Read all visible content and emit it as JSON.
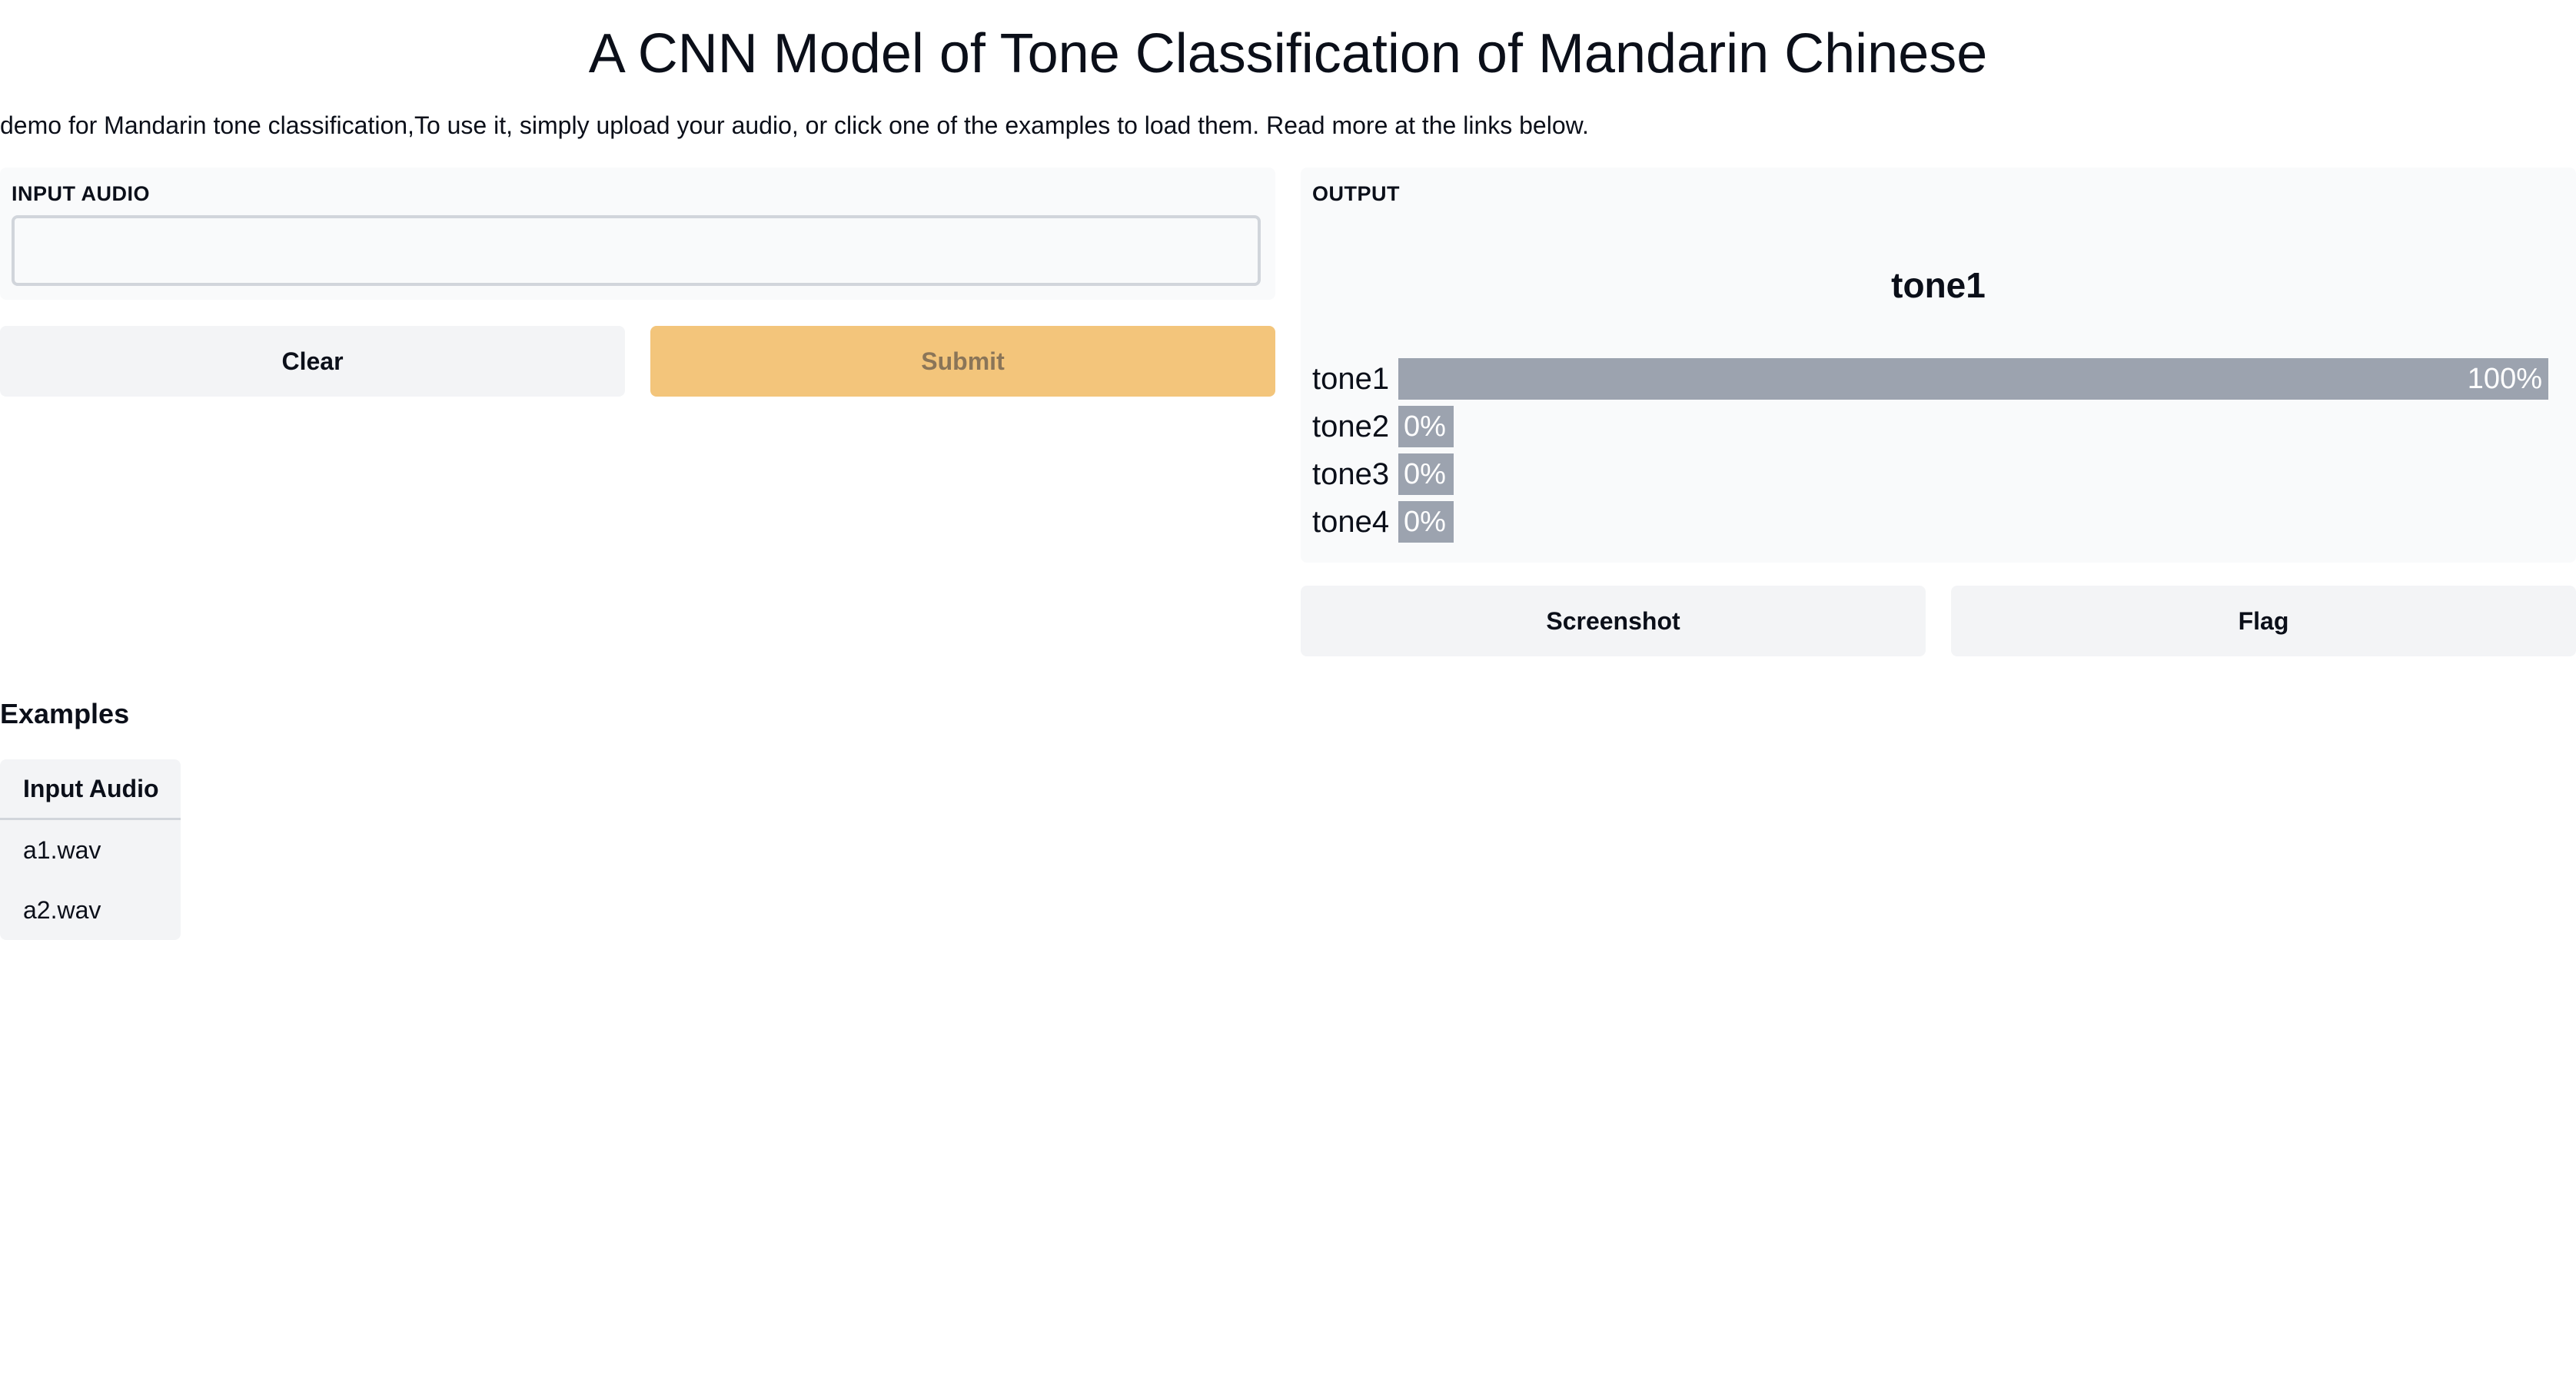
{
  "header": {
    "title": "A CNN Model of Tone Classification of Mandarin Chinese",
    "description": "demo for Mandarin tone classification,To use it, simply upload your audio, or click one of the examples to load them. Read more at the links below."
  },
  "input": {
    "label": "INPUT AUDIO",
    "clear_label": "Clear",
    "submit_label": "Submit"
  },
  "output": {
    "label": "OUTPUT",
    "top_label": "tone1",
    "confidences": [
      {
        "name": "tone1",
        "value": 1.0,
        "text": "100%"
      },
      {
        "name": "tone2",
        "value": 0.0,
        "text": "0%"
      },
      {
        "name": "tone3",
        "value": 0.0,
        "text": "0%"
      },
      {
        "name": "tone4",
        "value": 0.0,
        "text": "0%"
      }
    ],
    "screenshot_label": "Screenshot",
    "flag_label": "Flag"
  },
  "examples": {
    "heading": "Examples",
    "column_header": "Input Audio",
    "rows": [
      "a1.wav",
      "a2.wav"
    ]
  },
  "colors": {
    "submit_bg": "#f3c57b",
    "bar": "#9ca3af",
    "panel_bg": "#f9fafb",
    "button_bg": "#f3f4f6"
  }
}
